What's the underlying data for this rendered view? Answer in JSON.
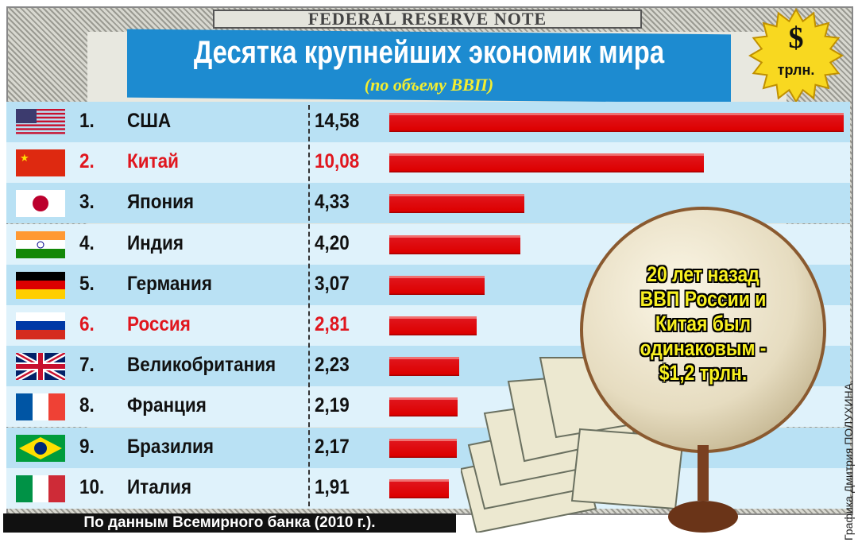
{
  "banner": "FEDERAL RESERVE NOTE",
  "chart_data": {
    "type": "bar",
    "orientation": "horizontal",
    "title": "Десятка крупнейших экономик мира",
    "subtitle": "(по объему ВВП)",
    "unit_badge": {
      "symbol": "$",
      "label": "трлн."
    },
    "categories": [
      "США",
      "Китай",
      "Япония",
      "Индия",
      "Германия",
      "Россия",
      "Великобритания",
      "Франция",
      "Бразилия",
      "Италия"
    ],
    "ranks": [
      "1.",
      "2.",
      "3.",
      "4.",
      "5.",
      "6.",
      "7.",
      "8.",
      "9.",
      "10."
    ],
    "value_labels": [
      "14,58",
      "10,08",
      "4,33",
      "4,20",
      "3,07",
      "2,81",
      "2,23",
      "2,19",
      "2,17",
      "1,91"
    ],
    "values": [
      14.58,
      10.08,
      4.33,
      4.2,
      3.07,
      2.81,
      2.23,
      2.19,
      2.17,
      1.91
    ],
    "highlighted": [
      "Китай",
      "Россия"
    ],
    "flags": [
      "us-flag-icon",
      "china-flag-icon",
      "japan-flag-icon",
      "india-flag-icon",
      "germany-flag-icon",
      "russia-flag-icon",
      "uk-flag-icon",
      "france-flag-icon",
      "brazil-flag-icon",
      "italy-flag-icon"
    ],
    "colors": {
      "bar": "#e0151c",
      "highlight_text": "#e0161e",
      "title_band": "#1d8bd0",
      "subtitle": "#f4ee30"
    },
    "source": "По данным Всемирного банка (2010 г.).",
    "annotation": "20 лет назад ВВП России и Китая был одинаковым - $1,2 трлн."
  },
  "credit": "Графика Дмитрия ПОЛУХИНА."
}
